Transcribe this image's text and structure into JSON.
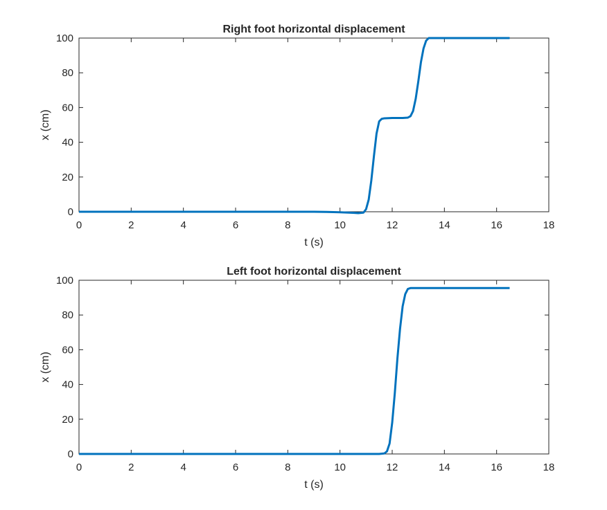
{
  "figure": {
    "background": "#ffffff",
    "axes_color": "#262626",
    "line_color": "#0072BD"
  },
  "chart_data": [
    {
      "type": "line",
      "title": "Right foot horizontal displacement",
      "xlabel": "t (s)",
      "ylabel": "x (cm)",
      "xlim": [
        0,
        18
      ],
      "ylim": [
        0,
        100
      ],
      "xticks": [
        "0",
        "2",
        "4",
        "6",
        "8",
        "10",
        "12",
        "14",
        "16",
        "18"
      ],
      "yticks": [
        "0",
        "20",
        "40",
        "60",
        "80",
        "100"
      ],
      "grid": false,
      "series": [
        {
          "color": "#0072BD",
          "x": [
            0,
            2,
            4,
            6,
            8,
            9,
            9.5,
            10,
            10.5,
            10.7,
            10.9,
            11.0,
            11.1,
            11.2,
            11.3,
            11.4,
            11.5,
            11.6,
            11.7,
            12.0,
            12.4,
            12.6,
            12.7,
            12.8,
            12.9,
            13.0,
            13.1,
            13.2,
            13.3,
            13.4,
            13.6,
            14,
            15,
            16,
            16.5
          ],
          "y": [
            0,
            0,
            0,
            0,
            0,
            0,
            -0.1,
            -0.3,
            -0.6,
            -0.8,
            -0.5,
            1.5,
            7,
            18,
            32,
            45,
            52,
            53.5,
            53.8,
            54,
            54,
            54.2,
            55,
            58,
            65,
            75,
            86,
            94,
            98.5,
            100,
            100,
            100,
            100,
            100,
            100
          ]
        }
      ]
    },
    {
      "type": "line",
      "title": "Left foot horizontal displacement",
      "xlabel": "t (s)",
      "ylabel": "x (cm)",
      "xlim": [
        0,
        18
      ],
      "ylim": [
        0,
        100
      ],
      "xticks": [
        "0",
        "2",
        "4",
        "6",
        "8",
        "10",
        "12",
        "14",
        "16",
        "18"
      ],
      "yticks": [
        "0",
        "20",
        "40",
        "60",
        "80",
        "100"
      ],
      "grid": false,
      "series": [
        {
          "color": "#0072BD",
          "x": [
            0,
            2,
            4,
            6,
            8,
            10,
            11.5,
            11.7,
            11.8,
            11.9,
            12.0,
            12.1,
            12.2,
            12.3,
            12.4,
            12.5,
            12.6,
            12.7,
            13,
            14,
            15,
            16,
            16.5
          ],
          "y": [
            0,
            0,
            0,
            0,
            0,
            0,
            0,
            0.3,
            1.5,
            6,
            18,
            35,
            55,
            72,
            85,
            92,
            95,
            95.5,
            95.5,
            95.5,
            95.5,
            95.5,
            95.5
          ]
        }
      ]
    }
  ]
}
